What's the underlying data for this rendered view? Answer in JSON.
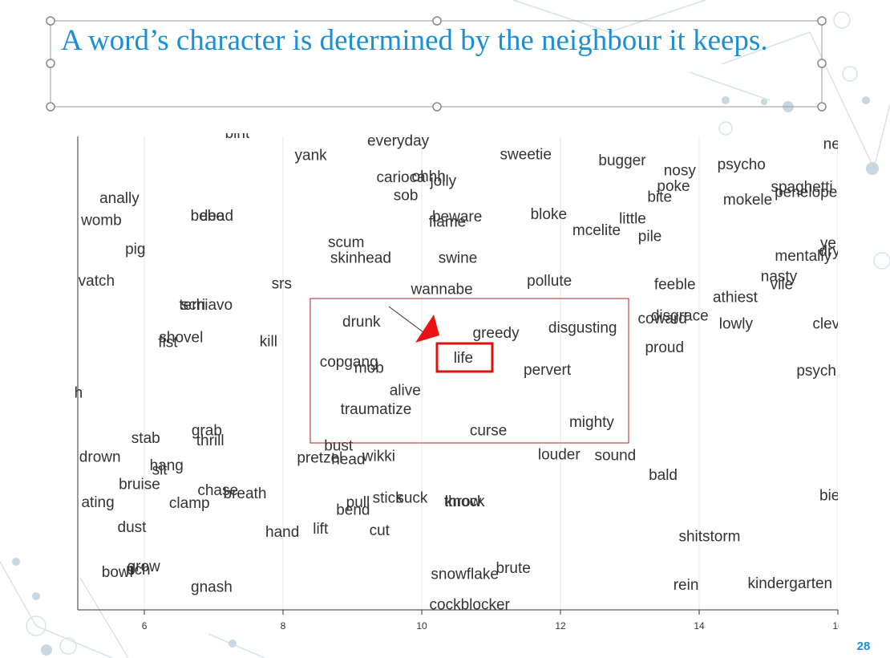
{
  "title": "A word’s character is determined by the neighbour it keeps.",
  "page_number": "28",
  "chart_data": {
    "type": "scatter",
    "words": [
      "bint",
      "everyday",
      "yank",
      "sweetie",
      "bugger",
      "nosy",
      "psycho",
      "ne",
      "carioca",
      "ohhh",
      "jolly",
      "sob",
      "poke",
      "bite",
      "mokele",
      "spaghetti",
      "penelope",
      "anally",
      "womb",
      "bebe",
      "dead",
      "beware",
      "flame",
      "bloke",
      "little",
      "mcelite",
      "pile",
      "pig",
      "scum",
      "skinhead",
      "swine",
      "ye",
      "mentally",
      "dry",
      "vatch",
      "srs",
      "wannabe",
      "pollute",
      "feeble",
      "nasty",
      "vile",
      "athiest",
      "schiavo",
      "terri",
      "drunk",
      "greedy",
      "disgusting",
      "coward",
      "disgrace",
      "lowly",
      "clev",
      "shovel",
      "fist",
      "kill",
      "proud",
      "copgang",
      "mob",
      "life",
      "pervert",
      "psych",
      "h",
      "alive",
      "traumatize",
      "mighty",
      "curse",
      "stab",
      "grab",
      "thrill",
      "bust",
      "pretzel",
      "head",
      "wikki",
      "drown",
      "hang",
      "sit",
      "louder",
      "sound",
      "bald",
      "bruise",
      "chase",
      "breath",
      "clamp",
      "pull",
      "stick",
      "suck",
      "throw",
      "knock",
      "bend",
      "bie",
      "ating",
      "dust",
      "hand",
      "lift",
      "cut",
      "shitstorm",
      "grow",
      "bowl",
      "rich",
      "snowflake",
      "brute",
      "rein",
      "kindergarten",
      "gnash",
      "cockblocker"
    ],
    "x": [
      7.34,
      9.66,
      8.4,
      11.5,
      12.89,
      13.72,
      14.61,
      15.91,
      9.7,
      10.1,
      10.31,
      9.77,
      13.63,
      13.43,
      14.7,
      15.48,
      15.54,
      5.64,
      5.38,
      6.91,
      7.04,
      10.51,
      10.37,
      11.83,
      13.04,
      12.52,
      13.29,
      5.87,
      8.91,
      9.12,
      10.52,
      15.86,
      15.5,
      15.88,
      5.31,
      7.98,
      10.29,
      11.84,
      13.65,
      15.15,
      15.19,
      14.52,
      6.9,
      6.69,
      9.13,
      11.07,
      12.32,
      13.47,
      13.72,
      14.53,
      15.83,
      6.53,
      6.34,
      7.79,
      13.5,
      8.95,
      9.24,
      10.6,
      11.81,
      15.69,
      5.05,
      9.76,
      9.34,
      12.45,
      10.96,
      6.02,
      6.9,
      6.95,
      8.8,
      8.53,
      8.94,
      9.38,
      5.36,
      6.32,
      6.22,
      11.98,
      12.79,
      13.48,
      5.93,
      7.06,
      7.45,
      6.65,
      9.08,
      9.51,
      9.86,
      10.59,
      10.62,
      9.01,
      15.88,
      5.33,
      5.82,
      7.99,
      8.54,
      9.39,
      14.15,
      5.99,
      5.61,
      5.91,
      10.62,
      11.32,
      13.81,
      15.31,
      6.97,
      10.69
    ],
    "y": [
      5.37,
      5.28,
      5.11,
      5.12,
      5.05,
      4.93,
      5.0,
      5.24,
      4.85,
      4.86,
      4.81,
      4.64,
      4.75,
      4.62,
      4.59,
      4.74,
      4.68,
      4.61,
      4.35,
      4.4,
      4.4,
      4.39,
      4.33,
      4.42,
      4.37,
      4.23,
      4.16,
      4.01,
      4.09,
      3.91,
      3.91,
      4.08,
      3.93,
      3.99,
      3.64,
      3.61,
      3.54,
      3.64,
      3.6,
      3.69,
      3.6,
      3.45,
      3.36,
      3.36,
      3.16,
      3.03,
      3.09,
      3.2,
      3.23,
      3.14,
      3.14,
      2.98,
      2.92,
      2.93,
      2.86,
      2.69,
      2.62,
      2.74,
      2.6,
      2.59,
      2.33,
      2.36,
      2.14,
      1.99,
      1.89,
      1.8,
      1.89,
      1.77,
      1.71,
      1.57,
      1.55,
      1.59,
      1.58,
      1.48,
      1.43,
      1.61,
      1.6,
      1.37,
      1.26,
      1.19,
      1.15,
      1.04,
      1.05,
      1.1,
      1.1,
      1.06,
      1.06,
      0.96,
      1.13,
      1.05,
      0.76,
      0.7,
      0.74,
      0.72,
      0.65,
      0.3,
      0.23,
      0.26,
      0.21,
      0.28,
      0.08,
      0.1,
      0.06,
      -0.15
    ],
    "xlim": [
      5.04,
      16
    ],
    "ylim": [
      -0.2,
      5.34
    ],
    "xticks": [
      6,
      8,
      10,
      12,
      14,
      16
    ],
    "color": "#333333"
  }
}
